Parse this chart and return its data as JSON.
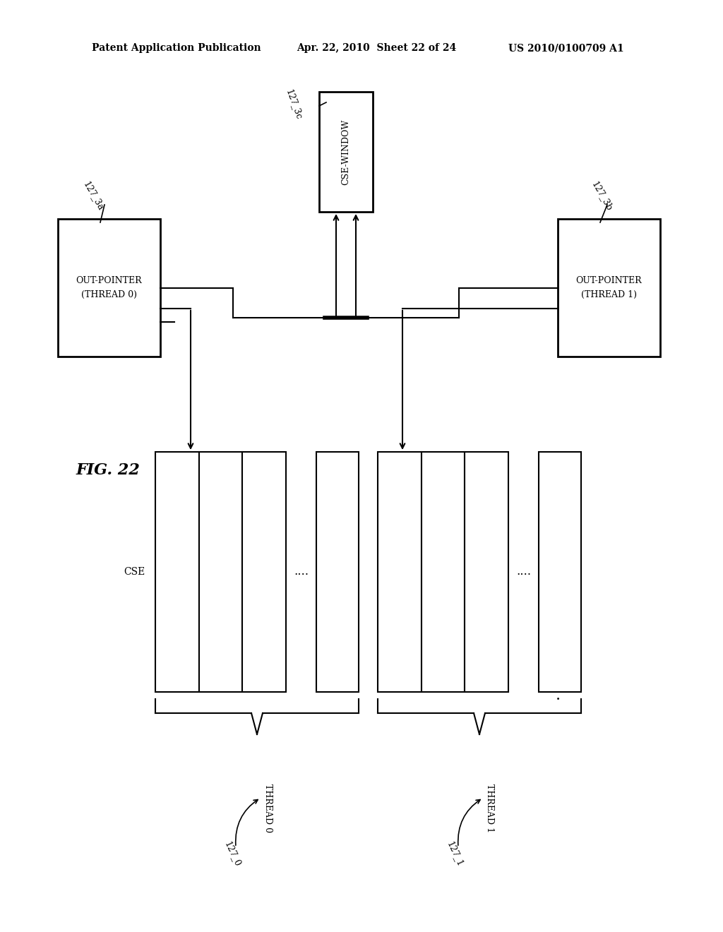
{
  "bg_color": "#ffffff",
  "header_left": "Patent Application Publication",
  "header_mid": "Apr. 22, 2010  Sheet 22 of 24",
  "header_right": "US 2010/0100709 A1",
  "fig_label": "FIG. 22",
  "csew_label": "CSE-WINDOW",
  "csew_id": "127_3c",
  "op0_label_line1": "OUT-POINTER",
  "op0_label_line2": "(THREAD 0)",
  "op0_id": "127_3a",
  "op1_label_line1": "OUT-POINTER",
  "op1_label_line2": "(THREAD 1)",
  "op1_id": "127_3b",
  "cse_label": "CSE",
  "thread0_label": "THREAD 0",
  "thread0_id": "127_0",
  "thread1_label": "THREAD 1",
  "thread1_id": "127_1",
  "dots": "....",
  "small_dot": "."
}
